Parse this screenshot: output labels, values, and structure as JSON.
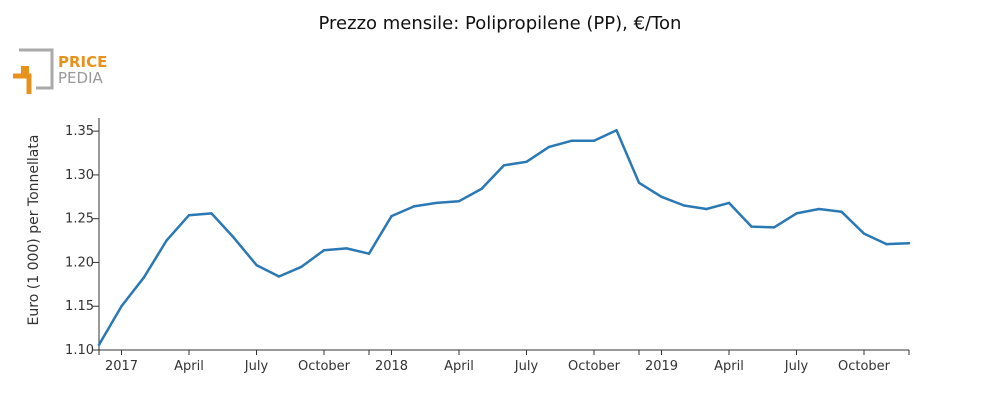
{
  "logo": {
    "line1": "PRICE",
    "line2": "PEDIA",
    "accent_color": "#e8921e",
    "frame_color": "#aaaaaa"
  },
  "chart_data": {
    "type": "line",
    "title": "Prezzo mensile: Polipropilene (PP), €/Ton",
    "xlabel": "",
    "ylabel": "Euro (1 000) per Tonnellata",
    "x": [
      "2016-12",
      "2017-01",
      "2017-02",
      "2017-03",
      "2017-04",
      "2017-05",
      "2017-06",
      "2017-07",
      "2017-08",
      "2017-09",
      "2017-10",
      "2017-11",
      "2017-12",
      "2018-01",
      "2018-02",
      "2018-03",
      "2018-04",
      "2018-05",
      "2018-06",
      "2018-07",
      "2018-08",
      "2018-09",
      "2018-10",
      "2018-11",
      "2018-12",
      "2019-01",
      "2019-02",
      "2019-03",
      "2019-04",
      "2019-05",
      "2019-06",
      "2019-07",
      "2019-08",
      "2019-09",
      "2019-10",
      "2019-11",
      "2019-12"
    ],
    "series": [
      {
        "color": "#2a78b4",
        "values": [
          1.106,
          1.15,
          1.183,
          1.225,
          1.254,
          1.256,
          1.228,
          1.197,
          1.184,
          1.195,
          1.214,
          1.216,
          1.21,
          1.253,
          1.264,
          1.268,
          1.27,
          1.284,
          1.311,
          1.315,
          1.332,
          1.339,
          1.339,
          1.351,
          1.291,
          1.275,
          1.265,
          1.261,
          1.268,
          1.241,
          1.24,
          1.256,
          1.261,
          1.258,
          1.233,
          1.221,
          1.222
        ]
      }
    ],
    "ylim": [
      1.1,
      1.365
    ],
    "yticks": [
      "1.10",
      "1.15",
      "1.20",
      "1.25",
      "1.30",
      "1.35"
    ],
    "xticks": [
      {
        "label": "2017",
        "at": "2017-01"
      },
      {
        "label": "April",
        "at": "2017-04"
      },
      {
        "label": "July",
        "at": "2017-07"
      },
      {
        "label": "October",
        "at": "2017-10"
      },
      {
        "label": "2018",
        "at": "2018-01"
      },
      {
        "label": "April",
        "at": "2018-04"
      },
      {
        "label": "July",
        "at": "2018-07"
      },
      {
        "label": "October",
        "at": "2018-10"
      },
      {
        "label": "2019",
        "at": "2019-01"
      },
      {
        "label": "April",
        "at": "2019-04"
      },
      {
        "label": "July",
        "at": "2019-07"
      },
      {
        "label": "October",
        "at": "2019-10"
      }
    ],
    "grid": false,
    "legend": "none"
  }
}
